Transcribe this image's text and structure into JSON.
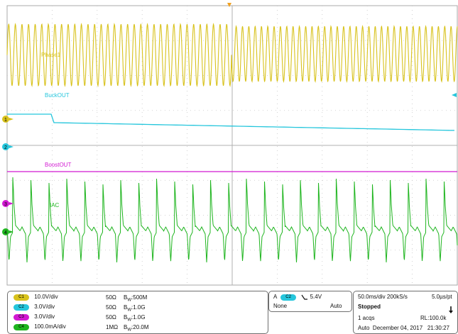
{
  "channels": [
    {
      "id": "1",
      "badge": "C1",
      "label": "Phase1",
      "color": "#d8c21c",
      "scale": "10.0V/div",
      "impedance": "50Ω",
      "bandwidth": "500M"
    },
    {
      "id": "2",
      "badge": "C2",
      "label": "BuckOUT",
      "color": "#25c6dc",
      "scale": "3.0V/div",
      "impedance": "50Ω",
      "bandwidth": "1.0G"
    },
    {
      "id": "3",
      "badge": "C3",
      "label": "BoostOUT",
      "color": "#d219d2",
      "scale": "3.0V/div",
      "impedance": "50Ω",
      "bandwidth": "1.0G"
    },
    {
      "id": "4",
      "badge": "C4",
      "label": "IAC",
      "color": "#1fb51f",
      "scale": "100.0mA/div",
      "impedance": "1MΩ",
      "bandwidth": "20.0M"
    }
  ],
  "bw_prefix": "B",
  "bw_sub": "W",
  "trigger": {
    "mode_label": "A",
    "source": "C2",
    "slope_icon": "falling-edge-icon",
    "level": "5.4V",
    "coupling": "None",
    "type": "Auto"
  },
  "acquisition": {
    "timebase": "50.0ms/div",
    "sample_rate": "200kS/s",
    "resolution": "5.0µs/pt",
    "state": "Stopped",
    "acqs": "1 acqs",
    "record_length": "RL:100.0k",
    "mode": "Auto",
    "date": "December 04, 2017",
    "time": "21:30:27"
  },
  "colors": {
    "grid": "#c6c6c6",
    "trigger_marker": "#f0a020",
    "border": "#6f6f6f"
  }
}
